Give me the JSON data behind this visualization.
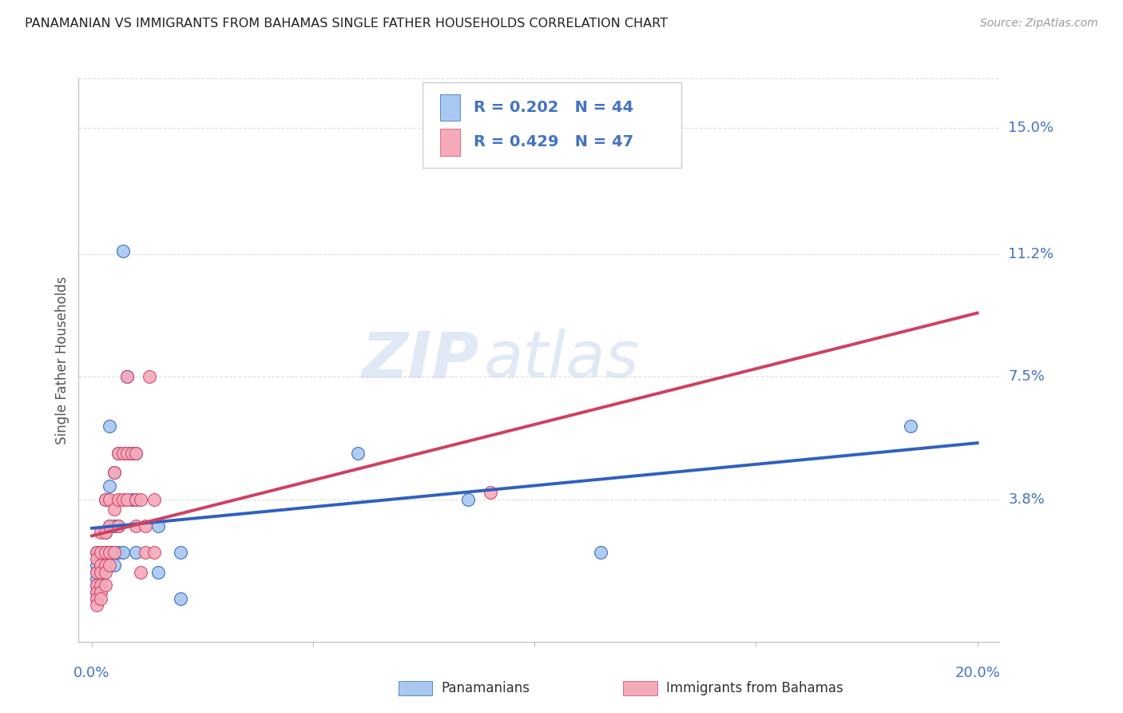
{
  "title": "PANAMANIAN VS IMMIGRANTS FROM BAHAMAS SINGLE FATHER HOUSEHOLDS CORRELATION CHART",
  "source": "Source: ZipAtlas.com",
  "ylabel": "Single Father Households",
  "ytick_labels": [
    "15.0%",
    "11.2%",
    "7.5%",
    "3.8%"
  ],
  "ytick_values": [
    0.15,
    0.112,
    0.075,
    0.038
  ],
  "xmin": 0.0,
  "xmax": 0.2,
  "ymin": -0.005,
  "ymax": 0.165,
  "legend_r1": "R = 0.202",
  "legend_n1": "N = 44",
  "legend_r2": "R = 0.429",
  "legend_n2": "N = 47",
  "color_blue": "#A8C8F0",
  "color_pink": "#F4AABB",
  "color_blue_line": "#3060C0",
  "color_pink_line": "#D04060",
  "color_blue_text": "#4472C4",
  "color_dashed": "#BBBBBB",
  "panamanians": [
    [
      0.001,
      0.022
    ],
    [
      0.001,
      0.018
    ],
    [
      0.001,
      0.016
    ],
    [
      0.001,
      0.014
    ],
    [
      0.001,
      0.012
    ],
    [
      0.001,
      0.01
    ],
    [
      0.001,
      0.008
    ],
    [
      0.002,
      0.022
    ],
    [
      0.002,
      0.018
    ],
    [
      0.002,
      0.016
    ],
    [
      0.002,
      0.014
    ],
    [
      0.002,
      0.012
    ],
    [
      0.003,
      0.038
    ],
    [
      0.003,
      0.028
    ],
    [
      0.003,
      0.022
    ],
    [
      0.003,
      0.018
    ],
    [
      0.004,
      0.06
    ],
    [
      0.004,
      0.042
    ],
    [
      0.004,
      0.03
    ],
    [
      0.004,
      0.022
    ],
    [
      0.005,
      0.046
    ],
    [
      0.005,
      0.03
    ],
    [
      0.005,
      0.022
    ],
    [
      0.005,
      0.018
    ],
    [
      0.006,
      0.052
    ],
    [
      0.006,
      0.03
    ],
    [
      0.006,
      0.022
    ],
    [
      0.007,
      0.113
    ],
    [
      0.007,
      0.022
    ],
    [
      0.008,
      0.075
    ],
    [
      0.008,
      0.052
    ],
    [
      0.009,
      0.052
    ],
    [
      0.009,
      0.038
    ],
    [
      0.01,
      0.052
    ],
    [
      0.01,
      0.038
    ],
    [
      0.01,
      0.022
    ],
    [
      0.015,
      0.03
    ],
    [
      0.015,
      0.016
    ],
    [
      0.02,
      0.022
    ],
    [
      0.02,
      0.008
    ],
    [
      0.06,
      0.052
    ],
    [
      0.085,
      0.038
    ],
    [
      0.115,
      0.022
    ],
    [
      0.185,
      0.06
    ]
  ],
  "bahamas": [
    [
      0.001,
      0.022
    ],
    [
      0.001,
      0.02
    ],
    [
      0.001,
      0.016
    ],
    [
      0.001,
      0.012
    ],
    [
      0.001,
      0.01
    ],
    [
      0.001,
      0.008
    ],
    [
      0.001,
      0.006
    ],
    [
      0.002,
      0.028
    ],
    [
      0.002,
      0.022
    ],
    [
      0.002,
      0.018
    ],
    [
      0.002,
      0.016
    ],
    [
      0.002,
      0.012
    ],
    [
      0.002,
      0.01
    ],
    [
      0.002,
      0.008
    ],
    [
      0.003,
      0.038
    ],
    [
      0.003,
      0.028
    ],
    [
      0.003,
      0.022
    ],
    [
      0.003,
      0.018
    ],
    [
      0.003,
      0.016
    ],
    [
      0.003,
      0.012
    ],
    [
      0.004,
      0.038
    ],
    [
      0.004,
      0.03
    ],
    [
      0.004,
      0.022
    ],
    [
      0.004,
      0.018
    ],
    [
      0.005,
      0.046
    ],
    [
      0.005,
      0.035
    ],
    [
      0.005,
      0.022
    ],
    [
      0.006,
      0.052
    ],
    [
      0.006,
      0.038
    ],
    [
      0.006,
      0.03
    ],
    [
      0.007,
      0.052
    ],
    [
      0.007,
      0.038
    ],
    [
      0.008,
      0.075
    ],
    [
      0.008,
      0.052
    ],
    [
      0.008,
      0.038
    ],
    [
      0.009,
      0.052
    ],
    [
      0.01,
      0.052
    ],
    [
      0.01,
      0.038
    ],
    [
      0.01,
      0.03
    ],
    [
      0.011,
      0.038
    ],
    [
      0.011,
      0.016
    ],
    [
      0.012,
      0.03
    ],
    [
      0.012,
      0.022
    ],
    [
      0.013,
      0.075
    ],
    [
      0.014,
      0.038
    ],
    [
      0.014,
      0.022
    ],
    [
      0.09,
      0.04
    ]
  ],
  "watermark_zip": "ZIP",
  "watermark_atlas": "atlas",
  "grid_color": "#DDDDDD"
}
